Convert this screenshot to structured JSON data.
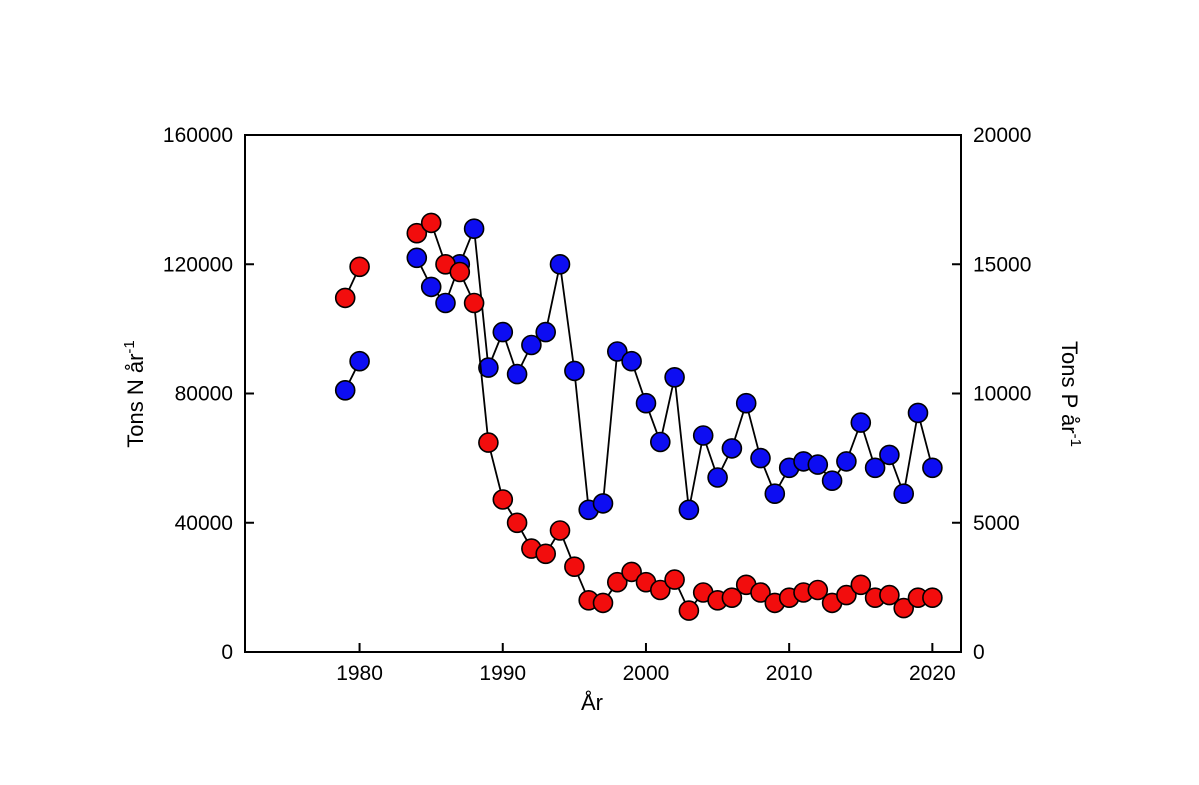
{
  "figure": {
    "background_color": "#ffffff",
    "frame_color": "#000000",
    "chart_data": {
      "type": "scatter",
      "title": "",
      "xlabel": "År",
      "x_axis": {
        "label": "År",
        "range": [
          1972,
          2022
        ],
        "ticks": [
          1980,
          1990,
          2000,
          2010,
          2020
        ],
        "tick_labels": [
          "1980",
          "1990",
          "2000",
          "2010",
          "2020"
        ]
      },
      "y_axis_left": {
        "label_prefix": "Tons N år",
        "label_sup": "-1",
        "label_full": "Tons N år⁻¹",
        "range": [
          0,
          160000
        ],
        "ticks": [
          0,
          40000,
          80000,
          120000,
          160000
        ],
        "tick_labels": [
          "0",
          "40000",
          "80000",
          "120000",
          "160000"
        ]
      },
      "y_axis_right": {
        "label_prefix": "Tons P år",
        "label_sup": "-1",
        "label_full": "Tons P år⁻¹",
        "range": [
          0,
          20000
        ],
        "ticks": [
          0,
          5000,
          10000,
          15000,
          20000
        ],
        "tick_labels": [
          "0",
          "5000",
          "10000",
          "15000",
          "20000"
        ]
      },
      "grid": false,
      "legend": "none",
      "marker_shape": "circle",
      "line_color": "#000000",
      "series": [
        {
          "key": "nitrogen",
          "name": "Tons N",
          "axis": "left",
          "marker_fill": "#0d0df2",
          "marker_outline": "#000000",
          "points": [
            [
              1979,
              81000
            ],
            [
              1980,
              90000
            ],
            [
              1984,
              122000
            ],
            [
              1985,
              113000
            ],
            [
              1986,
              108000
            ],
            [
              1987,
              120000
            ],
            [
              1988,
              131000
            ],
            [
              1989,
              88000
            ],
            [
              1990,
              99000
            ],
            [
              1991,
              86000
            ],
            [
              1992,
              95000
            ],
            [
              1993,
              99000
            ],
            [
              1994,
              120000
            ],
            [
              1995,
              87000
            ],
            [
              1996,
              44000
            ],
            [
              1997,
              46000
            ],
            [
              1998,
              93000
            ],
            [
              1999,
              90000
            ],
            [
              2000,
              77000
            ],
            [
              2001,
              65000
            ],
            [
              2002,
              85000
            ],
            [
              2003,
              44000
            ],
            [
              2004,
              67000
            ],
            [
              2005,
              54000
            ],
            [
              2006,
              63000
            ],
            [
              2007,
              77000
            ],
            [
              2008,
              60000
            ],
            [
              2009,
              49000
            ],
            [
              2010,
              57000
            ],
            [
              2011,
              59000
            ],
            [
              2012,
              58000
            ],
            [
              2013,
              53000
            ],
            [
              2014,
              59000
            ],
            [
              2015,
              71000
            ],
            [
              2016,
              57000
            ],
            [
              2017,
              61000
            ],
            [
              2018,
              49000
            ],
            [
              2019,
              74000
            ],
            [
              2020,
              57000
            ]
          ]
        },
        {
          "key": "phosphorus",
          "name": "Tons P",
          "axis": "right",
          "marker_fill": "#f20d0d",
          "marker_outline": "#000000",
          "points": [
            [
              1979,
              13700
            ],
            [
              1980,
              14900
            ],
            [
              1984,
              16200
            ],
            [
              1985,
              16600
            ],
            [
              1986,
              15000
            ],
            [
              1987,
              14700
            ],
            [
              1988,
              13500
            ],
            [
              1989,
              8100
            ],
            [
              1990,
              5900
            ],
            [
              1991,
              5000
            ],
            [
              1992,
              4000
            ],
            [
              1993,
              3800
            ],
            [
              1994,
              4700
            ],
            [
              1995,
              3300
            ],
            [
              1996,
              2000
            ],
            [
              1997,
              1900
            ],
            [
              1998,
              2700
            ],
            [
              1999,
              3100
            ],
            [
              2000,
              2700
            ],
            [
              2001,
              2400
            ],
            [
              2002,
              2800
            ],
            [
              2003,
              1600
            ],
            [
              2004,
              2300
            ],
            [
              2005,
              2000
            ],
            [
              2006,
              2100
            ],
            [
              2007,
              2600
            ],
            [
              2008,
              2300
            ],
            [
              2009,
              1900
            ],
            [
              2010,
              2100
            ],
            [
              2011,
              2300
            ],
            [
              2012,
              2400
            ],
            [
              2013,
              1900
            ],
            [
              2014,
              2200
            ],
            [
              2015,
              2600
            ],
            [
              2016,
              2100
            ],
            [
              2017,
              2200
            ],
            [
              2018,
              1700
            ],
            [
              2019,
              2100
            ],
            [
              2020,
              2100
            ]
          ]
        }
      ]
    }
  }
}
